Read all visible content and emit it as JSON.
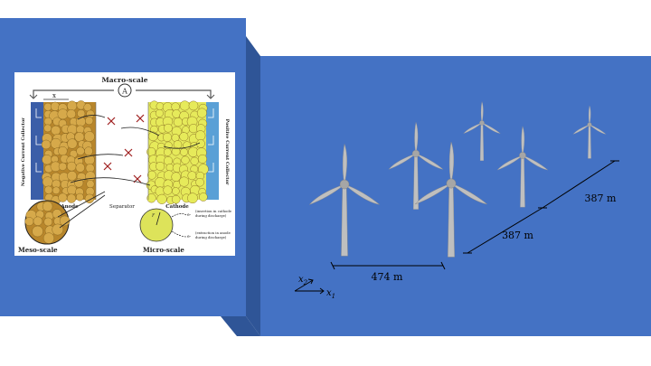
{
  "battery": {
    "macro_label": "Macro-scale",
    "ammeter": "A",
    "x_marker": "x",
    "neg_collector": "Negative Current Collector",
    "pos_collector": "Positive Current Collector",
    "anode": "Anode",
    "separator": "Separator",
    "cathode": "Cathode",
    "meso_label": "Meso-scale",
    "micro_label": "Micro-scale",
    "r_marker": "r",
    "note_insertion": "(insertion in cathode during discharge)",
    "note_extraction": "(extraction in anode during discharge)",
    "electron": "e-"
  },
  "wind_farm": {
    "spacing_1": "474 m",
    "spacing_2": "387 m",
    "spacing_3": "387 m",
    "axis_x1": "x",
    "axis_x1_sub": "1",
    "axis_x2": "x",
    "axis_x2_sub": "2"
  },
  "colors": {
    "panel_blue": "#4472c4",
    "bevel_dark": "#2f5597",
    "turbine_fill": "#bfbfbf",
    "anode_particle": "#d6a94a",
    "cathode_particle": "#e6ea5a",
    "collector_neg": "#3b5ea8",
    "collector_pos": "#5aa0d6"
  }
}
